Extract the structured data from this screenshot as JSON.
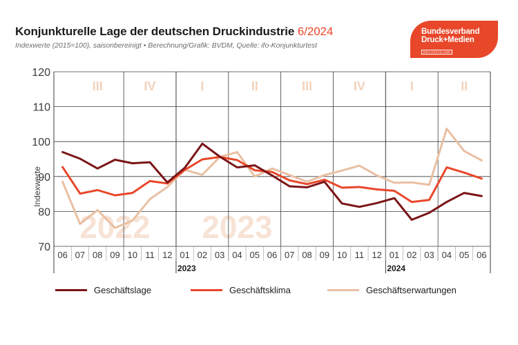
{
  "header": {
    "title_main": "Konjunkturelle Lage der deutschen Druckindustrie",
    "title_date": "6/2024",
    "subtitle": "Indexwerte (2015=100), saisonbereinigt • Berechnung/Grafik: BVDM, Quelle: ifo-Konjunkturtest"
  },
  "logo": {
    "line1": "Bundesverband",
    "line2": "Druck+Medien",
    "line3": "DEUTSCHLAND"
  },
  "colors": {
    "accent": "#e8472a",
    "geschaeftslage": "#7a1416",
    "geschaeftsklima": "#e8472a",
    "geschaeftserwartungen": "#e9bfa2",
    "quarter_label": "#f3d2bb",
    "year_watermark": "#f7e3d5",
    "grid": "#3a3a3a"
  },
  "chart_data": {
    "type": "line",
    "title": "Konjunkturelle Lage der deutschen Druckindustrie 6/2024",
    "ylabel": "Indexwerte",
    "ylim": [
      70,
      120
    ],
    "yticks": [
      70,
      80,
      90,
      100,
      110,
      120
    ],
    "grid": true,
    "legend_position": "bottom",
    "x": [
      "06",
      "07",
      "08",
      "09",
      "10",
      "11",
      "12",
      "01",
      "02",
      "03",
      "04",
      "05",
      "06",
      "07",
      "08",
      "09",
      "10",
      "11",
      "12",
      "01",
      "02",
      "03",
      "04",
      "05",
      "06"
    ],
    "year_labels": [
      {
        "label": "2023",
        "index": 7
      },
      {
        "label": "2024",
        "index": 19
      }
    ],
    "quarter_labels": [
      {
        "label": "III",
        "index": 2
      },
      {
        "label": "IV",
        "index": 5
      },
      {
        "label": "I",
        "index": 8
      },
      {
        "label": "II",
        "index": 11
      },
      {
        "label": "III",
        "index": 14
      },
      {
        "label": "IV",
        "index": 17
      },
      {
        "label": "I",
        "index": 20
      },
      {
        "label": "II",
        "index": 23
      }
    ],
    "year_watermarks": [
      {
        "label": "2022",
        "index": 3
      },
      {
        "label": "2023",
        "index": 10
      }
    ],
    "series": [
      {
        "name": "Geschäftslage",
        "values": [
          97.0,
          95.1,
          92.3,
          94.8,
          93.8,
          94.1,
          88.3,
          92.5,
          99.4,
          95.7,
          92.6,
          93.2,
          90.3,
          87.2,
          86.9,
          88.5,
          82.3,
          81.3,
          82.4,
          83.8,
          77.6,
          79.6,
          82.7,
          85.3,
          84.4
        ]
      },
      {
        "name": "Geschäftsklima",
        "values": [
          92.7,
          85.1,
          86.1,
          84.6,
          85.3,
          88.7,
          88.0,
          91.9,
          94.9,
          95.6,
          94.7,
          91.8,
          91.3,
          88.9,
          87.8,
          89.1,
          86.8,
          87.0,
          86.3,
          85.9,
          82.7,
          83.3,
          92.6,
          91.1,
          89.4
        ]
      },
      {
        "name": "Geschäftserwartungen",
        "values": [
          88.5,
          76.4,
          80.4,
          75.3,
          77.4,
          83.5,
          87.0,
          91.9,
          90.5,
          95.6,
          97.0,
          90.0,
          92.3,
          90.4,
          88.5,
          90.4,
          91.7,
          93.1,
          90.3,
          88.2,
          88.3,
          87.6,
          103.7,
          97.3,
          94.6
        ]
      }
    ]
  },
  "legend": {
    "items": [
      {
        "label": "Geschäftslage"
      },
      {
        "label": "Geschäftsklima"
      },
      {
        "label": "Geschäftserwartungen"
      }
    ]
  }
}
